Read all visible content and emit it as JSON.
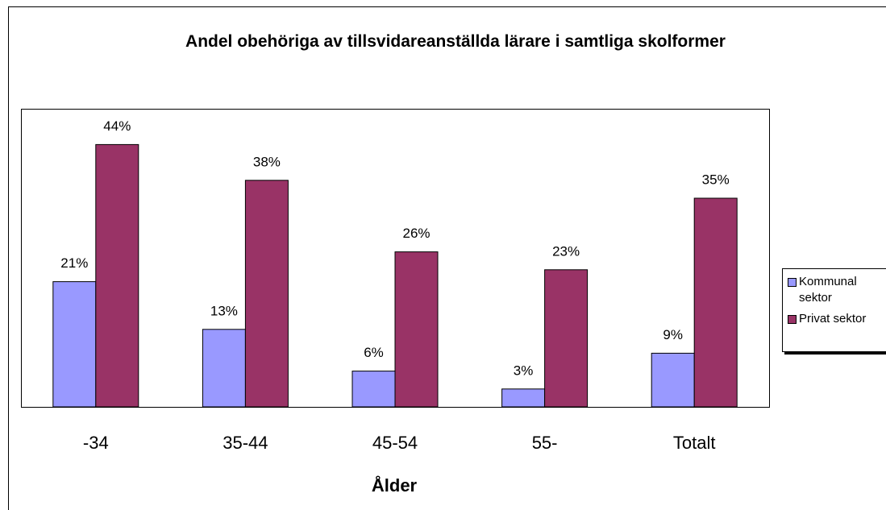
{
  "chart_data": {
    "type": "bar",
    "title": "Andel obehöriga av tillsvidareanställda lärare i samtliga skolformer",
    "xlabel": "Ålder",
    "categories": [
      "-34",
      "35-44",
      "45-54",
      "55-",
      "Totalt"
    ],
    "series": [
      {
        "name": "Kommunal sektor",
        "color": "#9999ff",
        "values": [
          21,
          13,
          6,
          3,
          9
        ],
        "value_labels": [
          "21%",
          "13%",
          "6%",
          "3%",
          "9%"
        ]
      },
      {
        "name": "Privat sektor",
        "color": "#993366",
        "values": [
          44,
          38,
          26,
          23,
          35
        ],
        "value_labels": [
          "44%",
          "38%",
          "26%",
          "23%",
          "35%"
        ]
      }
    ],
    "ylim": [
      0,
      50
    ],
    "legend": "right"
  }
}
